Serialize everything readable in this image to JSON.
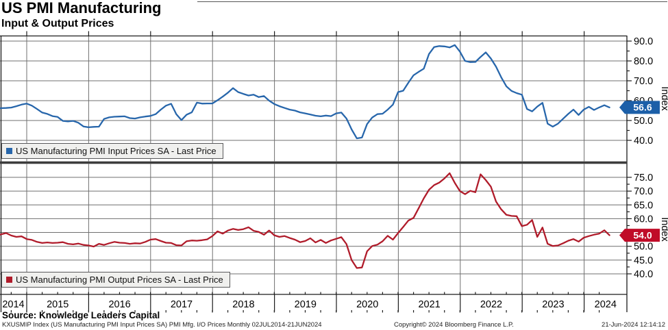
{
  "header": {
    "title": "US PMI Manufacturing",
    "subtitle": "Input & Output Prices"
  },
  "chart_data": [
    {
      "type": "line",
      "title": "US PMI Manufacturing Input Prices",
      "legend": "US Manufacturing PMI Input Prices SA - Last Price",
      "color": "#2766AB",
      "badge_color": "#1C5FA8",
      "last_price": "56.6",
      "ylabel": "Index",
      "ylim": [
        29.5,
        92.5
      ],
      "yticks": [
        "90.0",
        "80.0",
        "70.0",
        "60.0",
        "50.0",
        "40.0"
      ],
      "ytick_values": [
        90,
        80,
        70,
        60,
        50,
        40
      ],
      "x_start": "Jul 2014",
      "x_end": "Jun 2024",
      "frequency": "monthly",
      "monthly_values": [
        56.2,
        56.2,
        56.3,
        56.5,
        57.2,
        58.0,
        58.5,
        57.5,
        55.8,
        54.0,
        53.3,
        52.2,
        51.8,
        49.8,
        49.5,
        49.8,
        48.9,
        47.0,
        46.6,
        46.8,
        46.9,
        50.8,
        51.6,
        51.9,
        52.0,
        52.1,
        51.2,
        51.0,
        51.6,
        52.0,
        52.3,
        53.2,
        55.5,
        57.5,
        58.4,
        53.2,
        50.2,
        52.9,
        54.1,
        59.0,
        58.5,
        58.6,
        58.6,
        60.2,
        62.0,
        64.0,
        66.3,
        64.3,
        63.4,
        62.6,
        63.0,
        61.8,
        62.3,
        60.0,
        58.3,
        57.2,
        56.3,
        55.5,
        55.0,
        54.1,
        53.6,
        53.0,
        52.4,
        52.1,
        52.5,
        52.2,
        53.6,
        54.0,
        51.0,
        45.5,
        41.0,
        41.4,
        48.2,
        51.5,
        53.2,
        53.4,
        55.5,
        58.0,
        64.3,
        65.0,
        69.0,
        72.8,
        74.5,
        76.1,
        83.5,
        87.0,
        87.5,
        87.3,
        86.8,
        88.0,
        84.7,
        80.0,
        79.4,
        79.5,
        82.0,
        84.3,
        81.2,
        77.1,
        71.8,
        67.2,
        64.9,
        63.8,
        63.0,
        55.8,
        54.6,
        57.0,
        58.9,
        48.4,
        46.9,
        48.4,
        50.9,
        53.3,
        55.5,
        52.8,
        55.5,
        56.9,
        55.3,
        56.6,
        57.7,
        56.6
      ]
    },
    {
      "type": "line",
      "title": "US PMI Manufacturing Output Prices",
      "legend": "US Manufacturing PMI Output Prices SA - Last Price",
      "color": "#B01B2A",
      "badge_color": "#C00C28",
      "last_price": "54.0",
      "ylabel": "Index",
      "ylim": [
        32.5,
        79.5
      ],
      "yticks": [
        "75.0",
        "70.0",
        "65.0",
        "60.0",
        "55.0",
        "50.0",
        "45.0",
        "40.0"
      ],
      "ytick_values": [
        75,
        70,
        65,
        60,
        55,
        50,
        45,
        40
      ],
      "x_start": "Jul 2014",
      "x_end": "Jun 2024",
      "frequency": "monthly",
      "monthly_values": [
        53.8,
        54.3,
        54.8,
        53.9,
        53.4,
        53.6,
        52.6,
        52.3,
        51.6,
        51.2,
        51.4,
        51.2,
        51.3,
        51.5,
        50.9,
        50.7,
        51.0,
        50.5,
        50.3,
        49.9,
        50.9,
        50.5,
        51.1,
        51.6,
        51.3,
        51.2,
        50.9,
        51.1,
        51.0,
        51.6,
        52.4,
        52.6,
        51.9,
        51.3,
        51.2,
        50.4,
        50.3,
        51.8,
        52.1,
        52.0,
        52.2,
        52.5,
        53.7,
        55.4,
        54.6,
        55.7,
        56.3,
        55.9,
        56.2,
        56.9,
        55.6,
        55.2,
        54.2,
        55.7,
        54.0,
        53.4,
        53.7,
        53.0,
        52.4,
        51.5,
        51.9,
        52.9,
        51.4,
        52.3,
        51.2,
        52.1,
        52.7,
        53.3,
        50.8,
        45.0,
        42.1,
        42.3,
        48.2,
        50.1,
        50.6,
        51.8,
        53.8,
        52.4,
        54.8,
        57.0,
        59.3,
        60.3,
        63.8,
        67.4,
        70.5,
        72.2,
        73.1,
        74.6,
        76.5,
        73.0,
        70.0,
        68.9,
        70.1,
        69.6,
        76.1,
        74.0,
        71.6,
        66.2,
        63.4,
        61.4,
        61.0,
        60.9,
        57.3,
        57.8,
        59.5,
        53.4,
        56.8,
        50.9,
        50.1,
        50.3,
        51.1,
        52.0,
        52.6,
        51.7,
        53.1,
        53.7,
        54.2,
        54.6,
        55.8,
        54.0
      ]
    }
  ],
  "x_axis": {
    "years": [
      "2014",
      "2015",
      "2016",
      "2017",
      "2018",
      "2019",
      "2020",
      "2021",
      "2022",
      "2023",
      "2024"
    ]
  },
  "footer": {
    "source": "Source: Knowledge Leaders Capital",
    "disclaimer": "KXUSMIP Index (US Manufacturing PMI Input Prices SA) PMI Mfg. I/O Prices  Monthly 02JUL2014-21JUN2024",
    "copyright": "Copyright© 2024 Bloomberg Finance L.P.",
    "timestamp": "21-Jun-2024 12:14:12"
  }
}
